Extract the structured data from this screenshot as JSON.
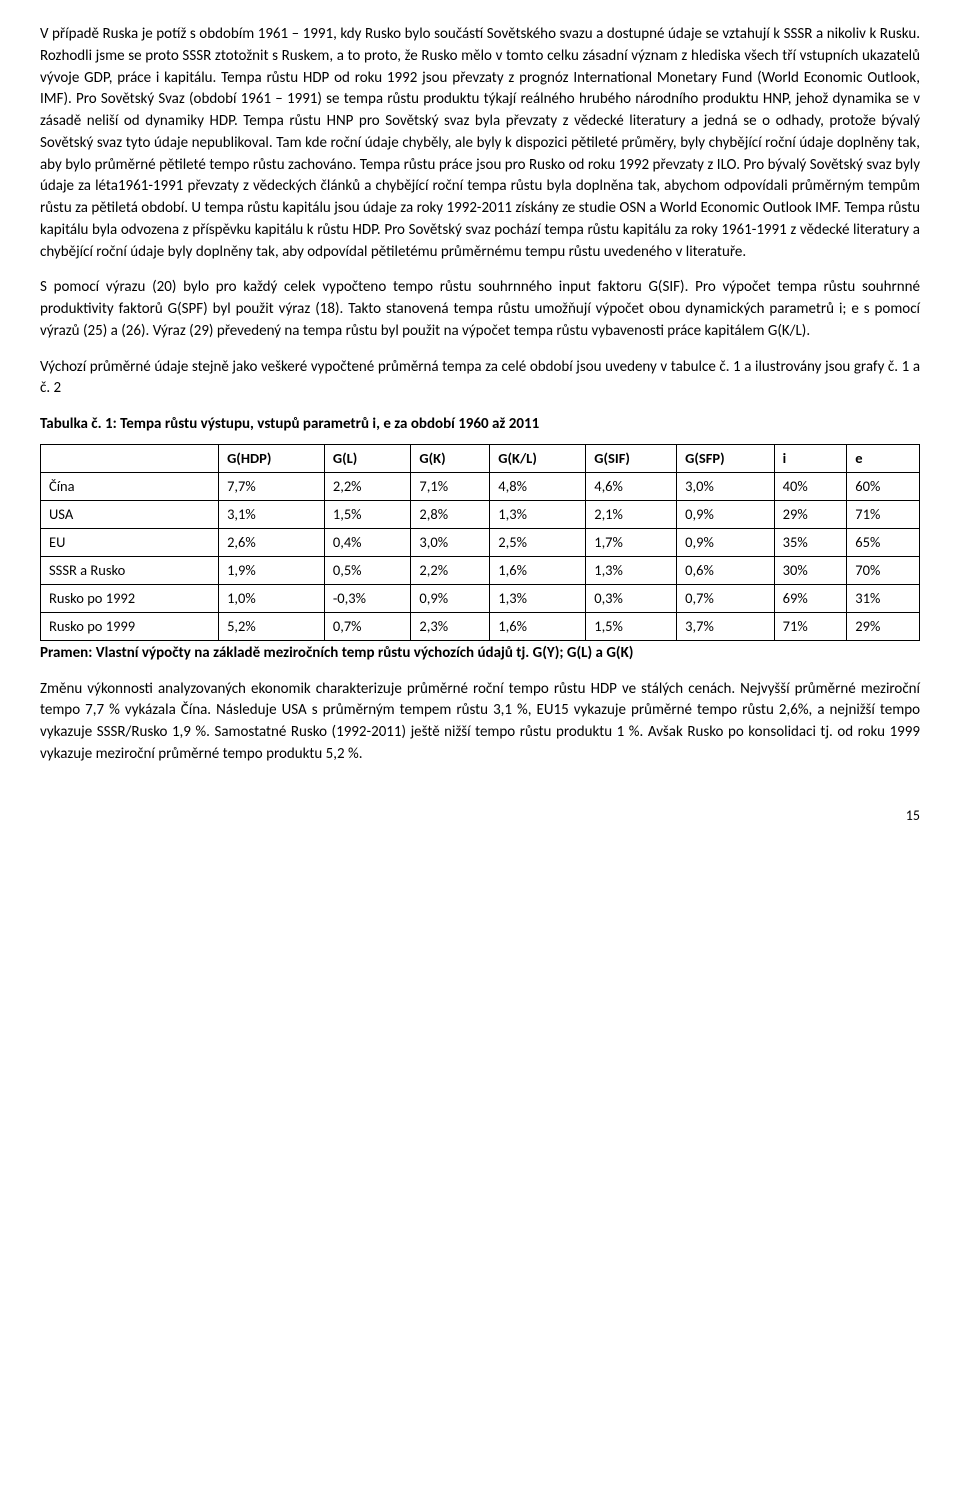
{
  "paragraphs": {
    "p1": "V případě Ruska je potíž s obdobím 1961 – 1991, kdy Rusko bylo součástí Sovětského svazu a dostupné údaje se vztahují k SSSR a nikoliv k Rusku. Rozhodli jsme se proto SSSR ztotožnit s Ruskem, a to proto, že Rusko mělo v tomto celku zásadní význam z hlediska všech tří vstupních ukazatelů vývoje GDP, práce i kapitálu. Tempa růstu HDP od roku 1992 jsou převzaty z prognóz International Monetary Fund (World Economic Outlook, IMF). Pro Sovětský Svaz (období 1961 – 1991) se tempa růstu produktu týkají reálného hrubého národního produktu HNP, jehož dynamika se v zásadě neliší od dynamiky HDP. Tempa růstu HNP pro Sovětský svaz byla převzaty z vědecké literatury a jedná se o odhady, protože bývalý Sovětský svaz tyto údaje nepublikoval. Tam kde roční údaje chyběly, ale byly k dispozici pětileté průměry, byly chybějící roční údaje doplněny tak, aby bylo průměrné pětileté tempo růstu zachováno. Tempa růstu práce jsou pro Rusko od roku 1992 převzaty z ILO. Pro bývalý Sovětský svaz byly údaje za léta1961-1991 převzaty z vědeckých článků a chybějící roční tempa růstu byla doplněna tak, abychom odpovídali průměrným tempům růstu za pětiletá období. U tempa růstu kapitálu jsou údaje za roky 1992-2011 získány ze studie OSN a World Economic Outlook IMF. Tempa růstu kapitálu byla odvozena z příspěvku kapitálu k růstu HDP. Pro Sovětský svaz pochází tempa růstu kapitálu za roky 1961-1991 z vědecké literatury a chybějící roční údaje byly doplněny tak, aby odpovídal pětiletému průměrnému tempu růstu uvedeného v literatuře.",
    "p2": "S pomocí výrazu (20) bylo pro každý celek vypočteno tempo růstu souhrnného input faktoru G(SIF). Pro výpočet tempa růstu souhrnné produktivity faktorů G(SPF) byl použit výraz (18). Takto stanovená tempa růstu umožňují výpočet obou dynamických parametrů i; e s pomocí výrazů (25) a (26). Výraz (29) převedený na tempa růstu byl použit na výpočet tempa růstu vybavenosti práce kapitálem G(K/L).",
    "p3": "Výchozí průměrné údaje stejně jako veškeré vypočtené průměrná tempa za celé období jsou uvedeny v tabulce č. 1 a ilustrovány jsou grafy č. 1 a č. 2",
    "p4": "Změnu výkonnosti analyzovaných ekonomik charakterizuje průměrné roční tempo růstu HDP ve stálých cenách. Nejvyšší průměrné meziroční tempo 7,7 % vykázala Čína. Následuje USA s průměrným tempem růstu 3,1 %, EU15 vykazuje průměrné tempo růstu 2,6%, a nejnižší tempo vykazuje SSSR/Rusko  1,9 %. Samostatné Rusko (1992-2011) ještě nižší tempo růstu produktu 1 %. Avšak Rusko po konsolidaci tj. od roku 1999 vykazuje meziroční průměrné tempo produktu 5,2 %."
  },
  "table": {
    "title": "Tabulka č. 1: Tempa růstu výstupu, vstupů parametrů i, e  za období 1960 až 2011",
    "headers": [
      "",
      "G(HDP)",
      "G(L)",
      "G(K)",
      "G(K/L)",
      "G(SIF)",
      "G(SFP)",
      "i",
      "e"
    ],
    "rows": [
      [
        "Čína",
        "7,7%",
        "2,2%",
        "7,1%",
        "4,8%",
        "4,6%",
        "3,0%",
        "40%",
        "60%"
      ],
      [
        "USA",
        "3,1%",
        "1,5%",
        "2,8%",
        "1,3%",
        "2,1%",
        "0,9%",
        "29%",
        "71%"
      ],
      [
        "EU",
        "2,6%",
        "0,4%",
        "3,0%",
        "2,5%",
        "1,7%",
        "0,9%",
        "35%",
        "65%"
      ],
      [
        "SSSR a Rusko",
        "1,9%",
        "0,5%",
        "2,2%",
        "1,6%",
        "1,3%",
        "0,6%",
        "30%",
        "70%"
      ],
      [
        "Rusko po 1992",
        "1,0%",
        "-0,3%",
        "0,9%",
        "1,3%",
        "0,3%",
        "0,7%",
        "69%",
        "31%"
      ],
      [
        "Rusko po 1999",
        "5,2%",
        "0,7%",
        "2,3%",
        "1,6%",
        "1,5%",
        "3,7%",
        "71%",
        "29%"
      ]
    ],
    "source": "Pramen: Vlastní výpočty na základě meziročních temp růstu výchozích údajů tj. G(Y); G(L) a G(K)"
  },
  "page_number": "15"
}
